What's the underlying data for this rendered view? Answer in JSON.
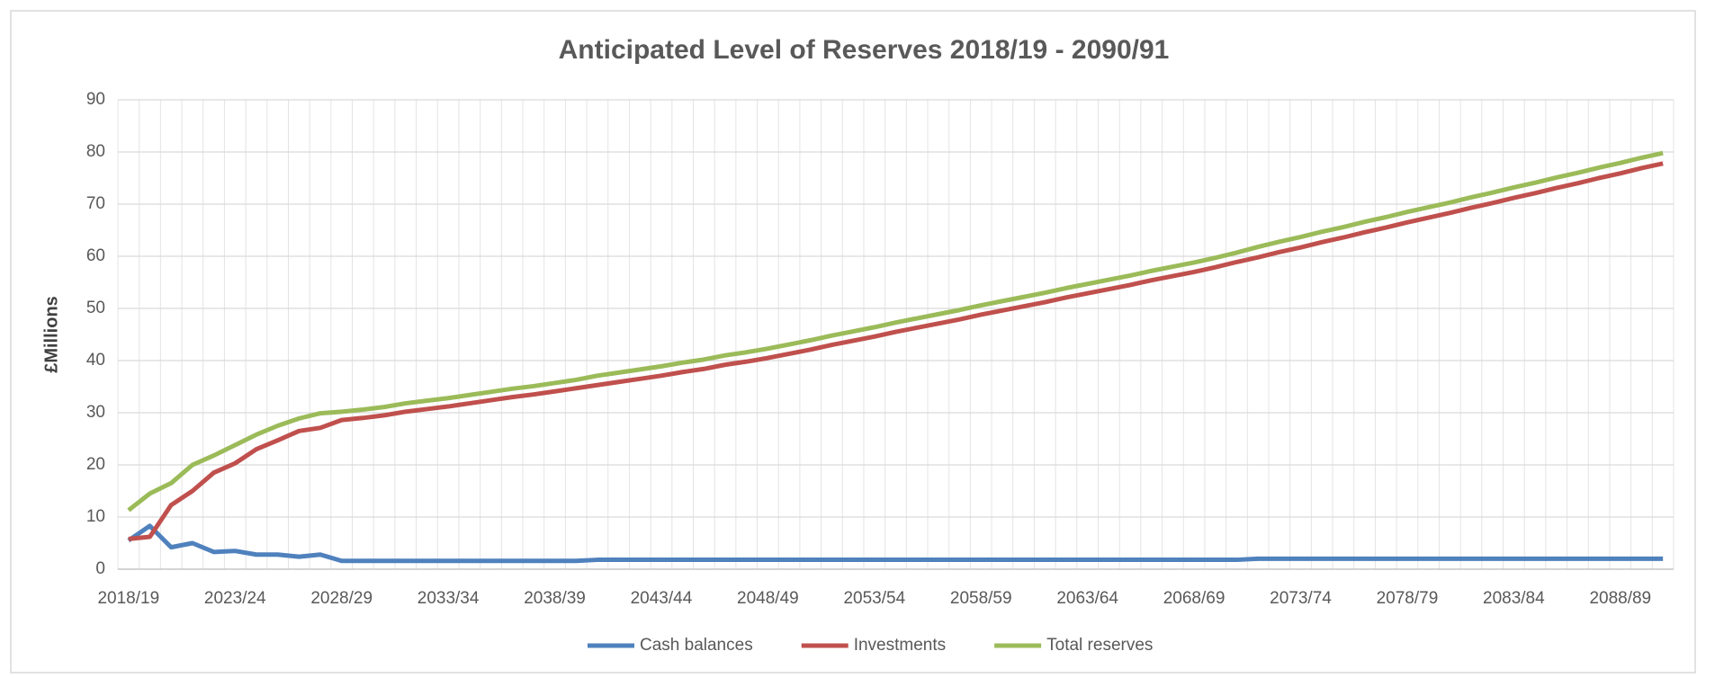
{
  "chart_data": {
    "type": "line",
    "title": "Anticipated Level of Reserves 2018/19 - 2090/91",
    "y_label": "£Millions",
    "categories": [
      "2018/19",
      null,
      null,
      null,
      null,
      "2023/24",
      null,
      null,
      null,
      null,
      "2028/29",
      null,
      null,
      null,
      null,
      "2033/34",
      null,
      null,
      null,
      null,
      "2038/39",
      null,
      null,
      null,
      null,
      "2043/44",
      null,
      null,
      null,
      null,
      "2048/49",
      null,
      null,
      null,
      null,
      "2053/54",
      null,
      null,
      null,
      null,
      "2058/59",
      null,
      null,
      null,
      null,
      "2063/64",
      null,
      null,
      null,
      null,
      "2068/69",
      null,
      null,
      null,
      null,
      "2073/74",
      null,
      null,
      null,
      null,
      "2078/79",
      null,
      null,
      null,
      null,
      "2083/84",
      null,
      null,
      null,
      null,
      "2088/89",
      null,
      null
    ],
    "series": [
      {
        "name": "Cash balances",
        "color": "#4f81bd",
        "values": [
          5.5,
          8.3,
          4.2,
          5.0,
          3.3,
          3.5,
          2.8,
          2.8,
          2.4,
          2.8,
          1.6,
          1.6,
          1.6,
          1.6,
          1.6,
          1.6,
          1.6,
          1.6,
          1.6,
          1.6,
          1.6,
          1.6,
          1.8,
          1.8,
          1.8,
          1.8,
          1.8,
          1.8,
          1.8,
          1.8,
          1.8,
          1.8,
          1.8,
          1.8,
          1.8,
          1.8,
          1.8,
          1.8,
          1.8,
          1.8,
          1.8,
          1.8,
          1.8,
          1.8,
          1.8,
          1.8,
          1.8,
          1.8,
          1.8,
          1.8,
          1.8,
          1.8,
          1.8,
          2.0,
          2.0,
          2.0,
          2.0,
          2.0,
          2.0,
          2.0,
          2.0,
          2.0,
          2.0,
          2.0,
          2.0,
          2.0,
          2.0,
          2.0,
          2.0,
          2.0,
          2.0,
          2.0,
          2.0
        ]
      },
      {
        "name": "Investments",
        "color": "#c0504d",
        "values": [
          5.8,
          6.2,
          12.3,
          15.0,
          18.5,
          20.3,
          23.0,
          24.7,
          26.5,
          27.1,
          28.6,
          29.0,
          29.5,
          30.2,
          30.7,
          31.2,
          31.8,
          32.4,
          33.0,
          33.5,
          34.1,
          34.7,
          35.3,
          35.9,
          36.5,
          37.1,
          37.8,
          38.4,
          39.2,
          39.8,
          40.5,
          41.3,
          42.1,
          43.0,
          43.8,
          44.6,
          45.5,
          46.3,
          47.1,
          47.9,
          48.8,
          49.6,
          50.4,
          51.2,
          52.1,
          52.9,
          53.7,
          54.5,
          55.4,
          56.2,
          57.0,
          57.9,
          58.9,
          59.8,
          60.8,
          61.7,
          62.7,
          63.6,
          64.6,
          65.5,
          66.5,
          67.4,
          68.3,
          69.3,
          70.2,
          71.2,
          72.1,
          73.1,
          74.0,
          75.0,
          75.9,
          76.9,
          77.8
        ]
      },
      {
        "name": "Total reserves",
        "color": "#9bbb59",
        "values": [
          11.3,
          14.5,
          16.5,
          20.0,
          21.8,
          23.8,
          25.8,
          27.5,
          28.9,
          29.9,
          30.2,
          30.6,
          31.1,
          31.8,
          32.3,
          32.8,
          33.4,
          34.0,
          34.6,
          35.1,
          35.7,
          36.3,
          37.1,
          37.7,
          38.3,
          38.9,
          39.6,
          40.2,
          41.0,
          41.6,
          42.3,
          43.1,
          43.9,
          44.8,
          45.6,
          46.4,
          47.3,
          48.1,
          48.9,
          49.7,
          50.6,
          51.4,
          52.2,
          53.0,
          53.9,
          54.7,
          55.5,
          56.3,
          57.2,
          58.0,
          58.8,
          59.7,
          60.7,
          61.8,
          62.8,
          63.7,
          64.7,
          65.6,
          66.6,
          67.5,
          68.5,
          69.4,
          70.3,
          71.3,
          72.2,
          73.2,
          74.1,
          75.1,
          76.0,
          77.0,
          77.9,
          78.9,
          79.8
        ]
      }
    ],
    "ylim": [
      0,
      90
    ],
    "yticks": [
      0,
      10,
      20,
      30,
      40,
      50,
      60,
      70,
      80,
      90
    ],
    "grid": true,
    "legend": "bottom"
  }
}
